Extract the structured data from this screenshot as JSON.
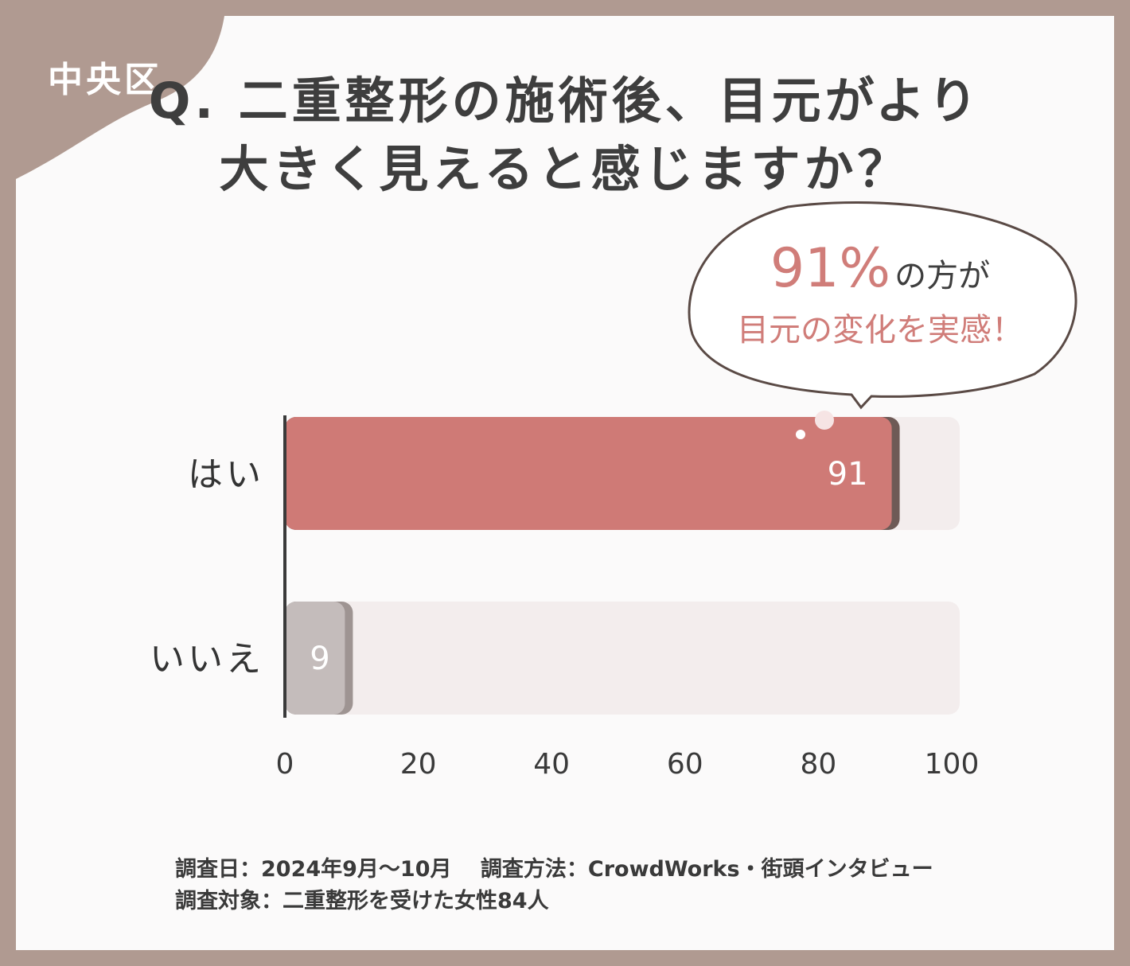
{
  "tag": "中央区",
  "title_line1": "Q. 二重整形の施術後、目元がより",
  "title_line2": "大きく見えると感じますか？",
  "callout": {
    "percent": "91%",
    "suffix": "の方が",
    "line2": "目元の変化を実感！"
  },
  "chart_data": {
    "type": "bar",
    "orientation": "horizontal",
    "categories": [
      "はい",
      "いいえ"
    ],
    "values": [
      91,
      9
    ],
    "value_labels": [
      "91",
      "9"
    ],
    "xlim": [
      0,
      100
    ],
    "xticks": [
      "0",
      "20",
      "40",
      "60",
      "80",
      "100"
    ],
    "colors": [
      "#cf7a76",
      "#c4bcbb"
    ],
    "track_color": "#f3eded",
    "grid": false
  },
  "footer": {
    "line1": "調査日：2024年9月〜10月　 調査方法：CrowdWorks・街頭インタビュー",
    "line2": "調査対象：二重整形を受けた女性84人"
  }
}
